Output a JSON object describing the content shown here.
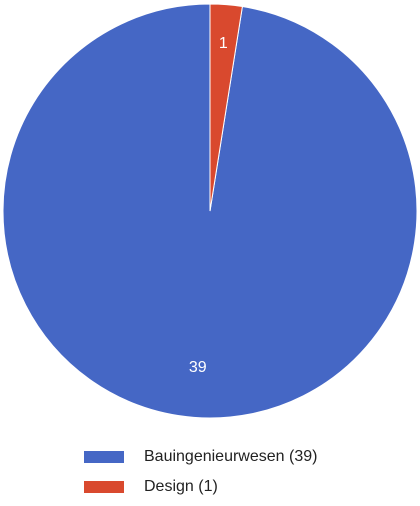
{
  "chart_data": {
    "type": "pie",
    "slices": [
      {
        "label": "Bauingenieurwesen",
        "value": 39,
        "color": "#4567c5",
        "display": "39"
      },
      {
        "label": "Design",
        "value": 1,
        "color": "#d9492e",
        "display": "1"
      }
    ],
    "legend": [
      {
        "text": "Bauingenieurwesen (39)",
        "color": "#4567c5"
      },
      {
        "text": "Design (1)",
        "color": "#d9492e"
      }
    ],
    "legend_placement": "bottom",
    "start_angle_deg": 0,
    "direction": "counterclockwise"
  }
}
